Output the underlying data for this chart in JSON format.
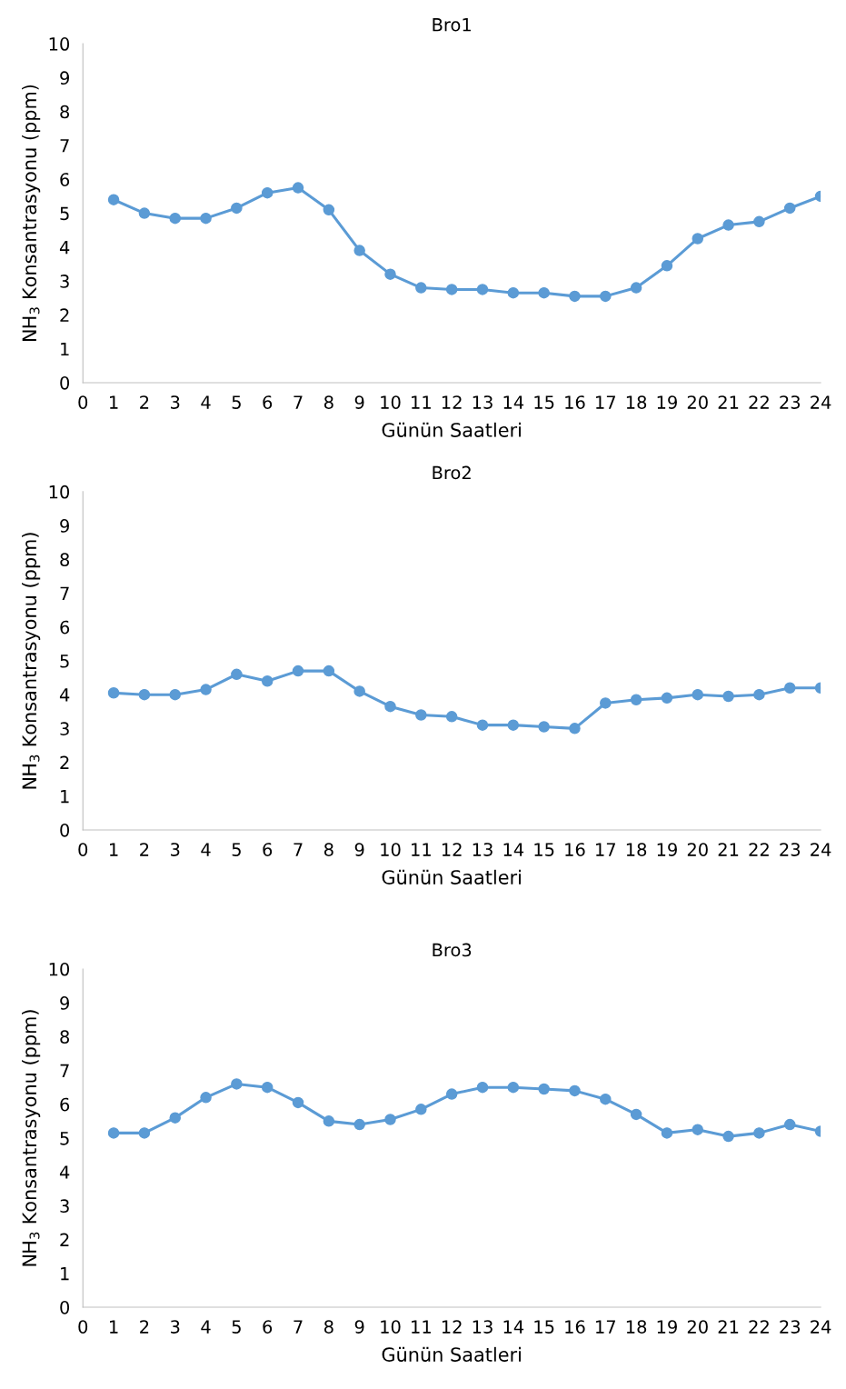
{
  "chart_data": [
    {
      "type": "line",
      "title": "Bro1",
      "xlabel": "Günün Saatleri",
      "ylabel": "NH$_{3}$ Konsantrasyonu (ppm)",
      "x": [
        1,
        2,
        3,
        4,
        5,
        6,
        7,
        8,
        9,
        10,
        11,
        12,
        13,
        14,
        15,
        16,
        17,
        18,
        19,
        20,
        21,
        22,
        23,
        24
      ],
      "xlim": [
        0,
        24
      ],
      "xticks": [
        0,
        1,
        2,
        3,
        4,
        5,
        6,
        7,
        8,
        9,
        10,
        11,
        12,
        13,
        14,
        15,
        16,
        17,
        18,
        19,
        20,
        21,
        22,
        23,
        24
      ],
      "ylim": [
        0,
        10
      ],
      "yticks": [
        0,
        1,
        2,
        3,
        4,
        5,
        6,
        7,
        8,
        9,
        10
      ],
      "grid": false,
      "marker": "circle",
      "line_style": "solid",
      "series": [
        {
          "color": "#5b9bd5",
          "values": [
            5.4,
            5.0,
            4.85,
            4.85,
            5.15,
            5.6,
            5.75,
            5.1,
            3.9,
            3.2,
            2.8,
            2.75,
            2.75,
            2.65,
            2.65,
            2.55,
            2.55,
            2.8,
            3.45,
            4.25,
            4.65,
            4.75,
            5.15,
            5.5
          ]
        }
      ]
    },
    {
      "type": "line",
      "title": "Bro2",
      "xlabel": "Günün Saatleri",
      "ylabel": "NH$_{3}$ Konsantrasyonu (ppm)",
      "x": [
        1,
        2,
        3,
        4,
        5,
        6,
        7,
        8,
        9,
        10,
        11,
        12,
        13,
        14,
        15,
        16,
        17,
        18,
        19,
        20,
        21,
        22,
        23,
        24
      ],
      "xlim": [
        0,
        24
      ],
      "xticks": [
        0,
        1,
        2,
        3,
        4,
        5,
        6,
        7,
        8,
        9,
        10,
        11,
        12,
        13,
        14,
        15,
        16,
        17,
        18,
        19,
        20,
        21,
        22,
        23,
        24
      ],
      "ylim": [
        0,
        10
      ],
      "yticks": [
        0,
        1,
        2,
        3,
        4,
        5,
        6,
        7,
        8,
        9,
        10
      ],
      "grid": false,
      "marker": "circle",
      "line_style": "solid",
      "series": [
        {
          "color": "#5b9bd5",
          "values": [
            4.05,
            4.0,
            4.0,
            4.15,
            4.6,
            4.4,
            4.7,
            4.7,
            4.1,
            3.65,
            3.4,
            3.35,
            3.1,
            3.1,
            3.05,
            3.0,
            3.75,
            3.85,
            3.9,
            4.0,
            3.95,
            4.0,
            4.2,
            4.2
          ]
        }
      ]
    },
    {
      "type": "line",
      "title": "Bro3",
      "xlabel": "Günün Saatleri",
      "ylabel": "NH$_{3}$ Konsantrasyonu (ppm)",
      "x": [
        1,
        2,
        3,
        4,
        5,
        6,
        7,
        8,
        9,
        10,
        11,
        12,
        13,
        14,
        15,
        16,
        17,
        18,
        19,
        20,
        21,
        22,
        23,
        24
      ],
      "xlim": [
        0,
        24
      ],
      "xticks": [
        0,
        1,
        2,
        3,
        4,
        5,
        6,
        7,
        8,
        9,
        10,
        11,
        12,
        13,
        14,
        15,
        16,
        17,
        18,
        19,
        20,
        21,
        22,
        23,
        24
      ],
      "ylim": [
        0,
        10
      ],
      "yticks": [
        0,
        1,
        2,
        3,
        4,
        5,
        6,
        7,
        8,
        9,
        10
      ],
      "grid": false,
      "marker": "circle",
      "line_style": "solid",
      "series": [
        {
          "color": "#5b9bd5",
          "values": [
            5.15,
            5.15,
            5.6,
            6.2,
            6.6,
            6.5,
            6.05,
            5.5,
            5.4,
            5.55,
            5.85,
            6.3,
            6.5,
            6.5,
            6.45,
            6.4,
            6.15,
            5.7,
            5.15,
            5.25,
            5.05,
            5.15,
            5.4,
            5.2
          ]
        }
      ]
    }
  ]
}
